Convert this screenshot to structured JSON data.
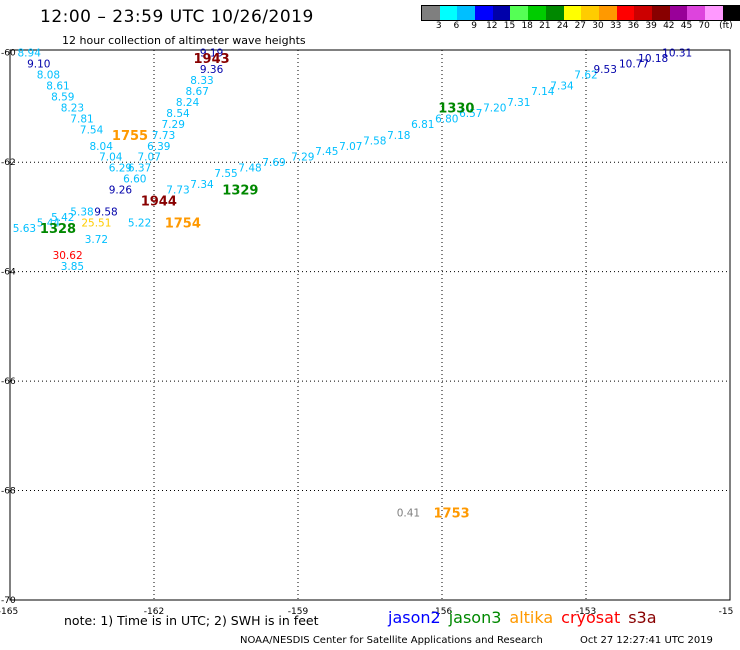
{
  "header": {
    "title": "12:00 – 23:59 UTC 10/26/2019",
    "subtitle": "12 hour collection of altimeter wave heights"
  },
  "colorbar": {
    "colors": [
      "#7f7f7f",
      "#00ffff",
      "#00bfff",
      "#0000ff",
      "#0000aa",
      "#55ff55",
      "#00cc00",
      "#008800",
      "#ffff00",
      "#ffcc00",
      "#ff9900",
      "#ff0000",
      "#cc0000",
      "#880000",
      "#990099",
      "#dd44dd",
      "#ff99ff",
      "#000000"
    ],
    "labels": [
      "3",
      "6",
      "9",
      "12",
      "15",
      "18",
      "21",
      "24",
      "27",
      "30",
      "33",
      "36",
      "39",
      "42",
      "45",
      "70",
      "(ft)"
    ]
  },
  "map": {
    "lon_ticks": [
      "-165",
      "-162",
      "-159",
      "-156",
      "-153",
      "-15"
    ],
    "lat_ticks": [
      "-60",
      "-62",
      "-64",
      "-66",
      "-68",
      "-70"
    ],
    "time_labels": [
      {
        "text": "1943",
        "color": "#880000",
        "lon": -160.8,
        "lat": -60.1
      },
      {
        "text": "1755",
        "color": "#ff9900",
        "lon": -162.5,
        "lat": -61.5
      },
      {
        "text": "1330",
        "color": "#008800",
        "lon": -155.7,
        "lat": -61.0
      },
      {
        "text": "1329",
        "color": "#008800",
        "lon": -160.2,
        "lat": -62.5
      },
      {
        "text": "1944",
        "color": "#880000",
        "lon": -161.9,
        "lat": -62.7
      },
      {
        "text": "1754",
        "color": "#ff9900",
        "lon": -161.4,
        "lat": -63.1
      },
      {
        "text": "1328",
        "color": "#008800",
        "lon": -164.0,
        "lat": -63.2
      },
      {
        "text": "1753",
        "color": "#ff9900",
        "lon": -155.8,
        "lat": -68.4
      }
    ],
    "swh_values": [
      {
        "text": "8.94",
        "color": "#00bfff",
        "lon": -164.6,
        "lat": -60.0
      },
      {
        "text": "9.10",
        "color": "#0000aa",
        "lon": -164.4,
        "lat": -60.2
      },
      {
        "text": "8.08",
        "color": "#00bfff",
        "lon": -164.2,
        "lat": -60.4
      },
      {
        "text": "8.61",
        "color": "#00bfff",
        "lon": -164.0,
        "lat": -60.6
      },
      {
        "text": "8.59",
        "color": "#00bfff",
        "lon": -163.9,
        "lat": -60.8
      },
      {
        "text": "8.23",
        "color": "#00bfff",
        "lon": -163.7,
        "lat": -61.0
      },
      {
        "text": "7.81",
        "color": "#00bfff",
        "lon": -163.5,
        "lat": -61.2
      },
      {
        "text": "7.54",
        "color": "#00bfff",
        "lon": -163.3,
        "lat": -61.4
      },
      {
        "text": "8.04",
        "color": "#00bfff",
        "lon": -163.1,
        "lat": -61.7
      },
      {
        "text": "7.04",
        "color": "#00bfff",
        "lon": -162.9,
        "lat": -61.9
      },
      {
        "text": "6.29",
        "color": "#00bfff",
        "lon": -162.7,
        "lat": -62.1
      },
      {
        "text": "9.26",
        "color": "#0000aa",
        "lon": -162.7,
        "lat": -62.5
      },
      {
        "text": "9.58",
        "color": "#0000aa",
        "lon": -163.0,
        "lat": -62.9
      },
      {
        "text": "9.19",
        "color": "#0000aa",
        "lon": -160.8,
        "lat": -60.0
      },
      {
        "text": "9.36",
        "color": "#0000aa",
        "lon": -160.8,
        "lat": -60.3
      },
      {
        "text": "8.33",
        "color": "#00bfff",
        "lon": -161.0,
        "lat": -60.5
      },
      {
        "text": "8.67",
        "color": "#00bfff",
        "lon": -161.1,
        "lat": -60.7
      },
      {
        "text": "8.24",
        "color": "#00bfff",
        "lon": -161.3,
        "lat": -60.9
      },
      {
        "text": "8.54",
        "color": "#00bfff",
        "lon": -161.5,
        "lat": -61.1
      },
      {
        "text": "7.29",
        "color": "#00bfff",
        "lon": -161.6,
        "lat": -61.3
      },
      {
        "text": "7.73",
        "color": "#00bfff",
        "lon": -161.8,
        "lat": -61.5
      },
      {
        "text": "6.39",
        "color": "#00bfff",
        "lon": -161.9,
        "lat": -61.7
      },
      {
        "text": "7.07",
        "color": "#00bfff",
        "lon": -162.1,
        "lat": -61.9
      },
      {
        "text": "6.37",
        "color": "#00bfff",
        "lon": -162.3,
        "lat": -62.1
      },
      {
        "text": "6.60",
        "color": "#00bfff",
        "lon": -162.4,
        "lat": -62.3
      },
      {
        "text": "5.22",
        "color": "#00bfff",
        "lon": -162.3,
        "lat": -63.1
      },
      {
        "text": "3.72",
        "color": "#00bfff",
        "lon": -163.2,
        "lat": -63.4
      },
      {
        "text": "3.85",
        "color": "#00bfff",
        "lon": -163.7,
        "lat": -63.9
      },
      {
        "text": "30.62",
        "color": "#ff0000",
        "lon": -163.8,
        "lat": -63.7
      },
      {
        "text": "25.51",
        "color": "#ffcc00",
        "lon": -163.2,
        "lat": -63.1
      },
      {
        "text": "5.38",
        "color": "#00bfff",
        "lon": -163.5,
        "lat": -62.9
      },
      {
        "text": "5.42",
        "color": "#00bfff",
        "lon": -163.9,
        "lat": -63.0
      },
      {
        "text": "5.44",
        "color": "#00bfff",
        "lon": -164.2,
        "lat": -63.1
      },
      {
        "text": "5.63",
        "color": "#00bfff",
        "lon": -164.7,
        "lat": -63.2
      },
      {
        "text": "7.73",
        "color": "#00bfff",
        "lon": -161.5,
        "lat": -62.5
      },
      {
        "text": "7.34",
        "color": "#00bfff",
        "lon": -161.0,
        "lat": -62.4
      },
      {
        "text": "7.55",
        "color": "#00bfff",
        "lon": -160.5,
        "lat": -62.2
      },
      {
        "text": "7.48",
        "color": "#00bfff",
        "lon": -160.0,
        "lat": -62.1
      },
      {
        "text": "7.69",
        "color": "#00bfff",
        "lon": -159.5,
        "lat": -62.0
      },
      {
        "text": "7.29",
        "color": "#00bfff",
        "lon": -158.9,
        "lat": -61.9
      },
      {
        "text": "7.45",
        "color": "#00bfff",
        "lon": -158.4,
        "lat": -61.8
      },
      {
        "text": "7.07",
        "color": "#00bfff",
        "lon": -157.9,
        "lat": -61.7
      },
      {
        "text": "7.58",
        "color": "#00bfff",
        "lon": -157.4,
        "lat": -61.6
      },
      {
        "text": "7.18",
        "color": "#00bfff",
        "lon": -156.9,
        "lat": -61.5
      },
      {
        "text": "6.81",
        "color": "#00bfff",
        "lon": -156.4,
        "lat": -61.3
      },
      {
        "text": "6.80",
        "color": "#00bfff",
        "lon": -155.9,
        "lat": -61.2
      },
      {
        "text": "6.57",
        "color": "#00bfff",
        "lon": -155.4,
        "lat": -61.1
      },
      {
        "text": "7.20",
        "color": "#00bfff",
        "lon": -154.9,
        "lat": -61.0
      },
      {
        "text": "7.31",
        "color": "#00bfff",
        "lon": -154.4,
        "lat": -60.9
      },
      {
        "text": "7.14",
        "color": "#00bfff",
        "lon": -153.9,
        "lat": -60.7
      },
      {
        "text": "7.34",
        "color": "#00bfff",
        "lon": -153.5,
        "lat": -60.6
      },
      {
        "text": "7.62",
        "color": "#00bfff",
        "lon": -153.0,
        "lat": -60.4
      },
      {
        "text": "9.53",
        "color": "#0000aa",
        "lon": -152.6,
        "lat": -60.3
      },
      {
        "text": "10.77",
        "color": "#0000aa",
        "lon": -152.0,
        "lat": -60.2
      },
      {
        "text": "10.18",
        "color": "#0000aa",
        "lon": -151.6,
        "lat": -60.1
      },
      {
        "text": "10.31",
        "color": "#0000aa",
        "lon": -151.1,
        "lat": -60.0
      },
      {
        "text": "0.41",
        "color": "#7f7f7f",
        "lon": -156.7,
        "lat": -68.4
      }
    ]
  },
  "footer": {
    "note": "note: 1) Time is in UTC; 2) SWH is in feet",
    "satellites": [
      {
        "name": "jason2",
        "color": "#0000ff"
      },
      {
        "name": "jason3",
        "color": "#008800"
      },
      {
        "name": "altika",
        "color": "#ff9900"
      },
      {
        "name": "cryosat",
        "color": "#ff0000"
      },
      {
        "name": "s3a",
        "color": "#880000"
      }
    ],
    "credit": "NOAA/NESDIS Center for Satellite Applications and Research",
    "timestamp": "Oct 27 12:27:41 UTC 2019"
  }
}
